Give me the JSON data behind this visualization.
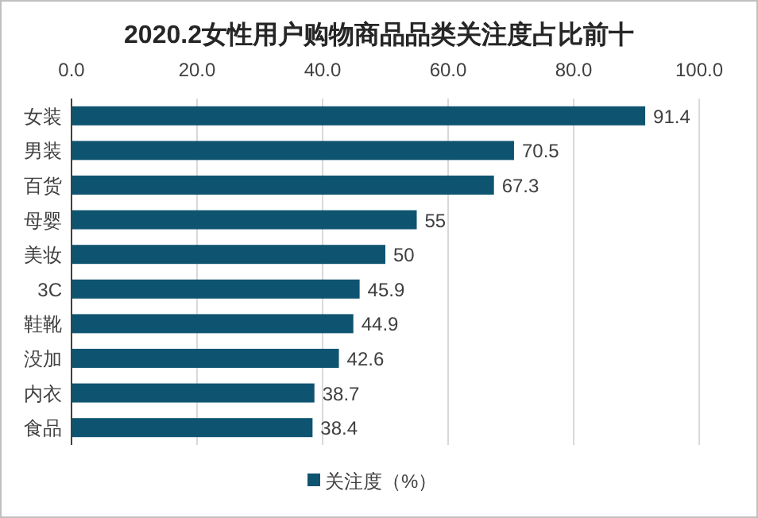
{
  "chart_data": {
    "type": "bar",
    "orientation": "horizontal",
    "title": "2020.2女性用户购物商品品类关注度占比前十",
    "categories": [
      "女装",
      "男装",
      "百货",
      "母婴",
      "美妆",
      "3C",
      "鞋靴",
      "没加",
      "内衣",
      "食品"
    ],
    "series": [
      {
        "name": "关注度（%）",
        "color": "#0e5470",
        "values": [
          91.4,
          70.5,
          67.3,
          55,
          50,
          45.9,
          44.9,
          42.6,
          38.7,
          38.4
        ]
      }
    ],
    "xlim": [
      0,
      100
    ],
    "xticks": [
      {
        "value": 0,
        "label": "0.0"
      },
      {
        "value": 20,
        "label": "20.0"
      },
      {
        "value": 40,
        "label": "40.0"
      },
      {
        "value": 60,
        "label": "60.0"
      },
      {
        "value": 80,
        "label": "80.0"
      },
      {
        "value": 100,
        "label": "100.0"
      }
    ],
    "grid": "x",
    "legend": "bottom",
    "data_labels": true
  }
}
